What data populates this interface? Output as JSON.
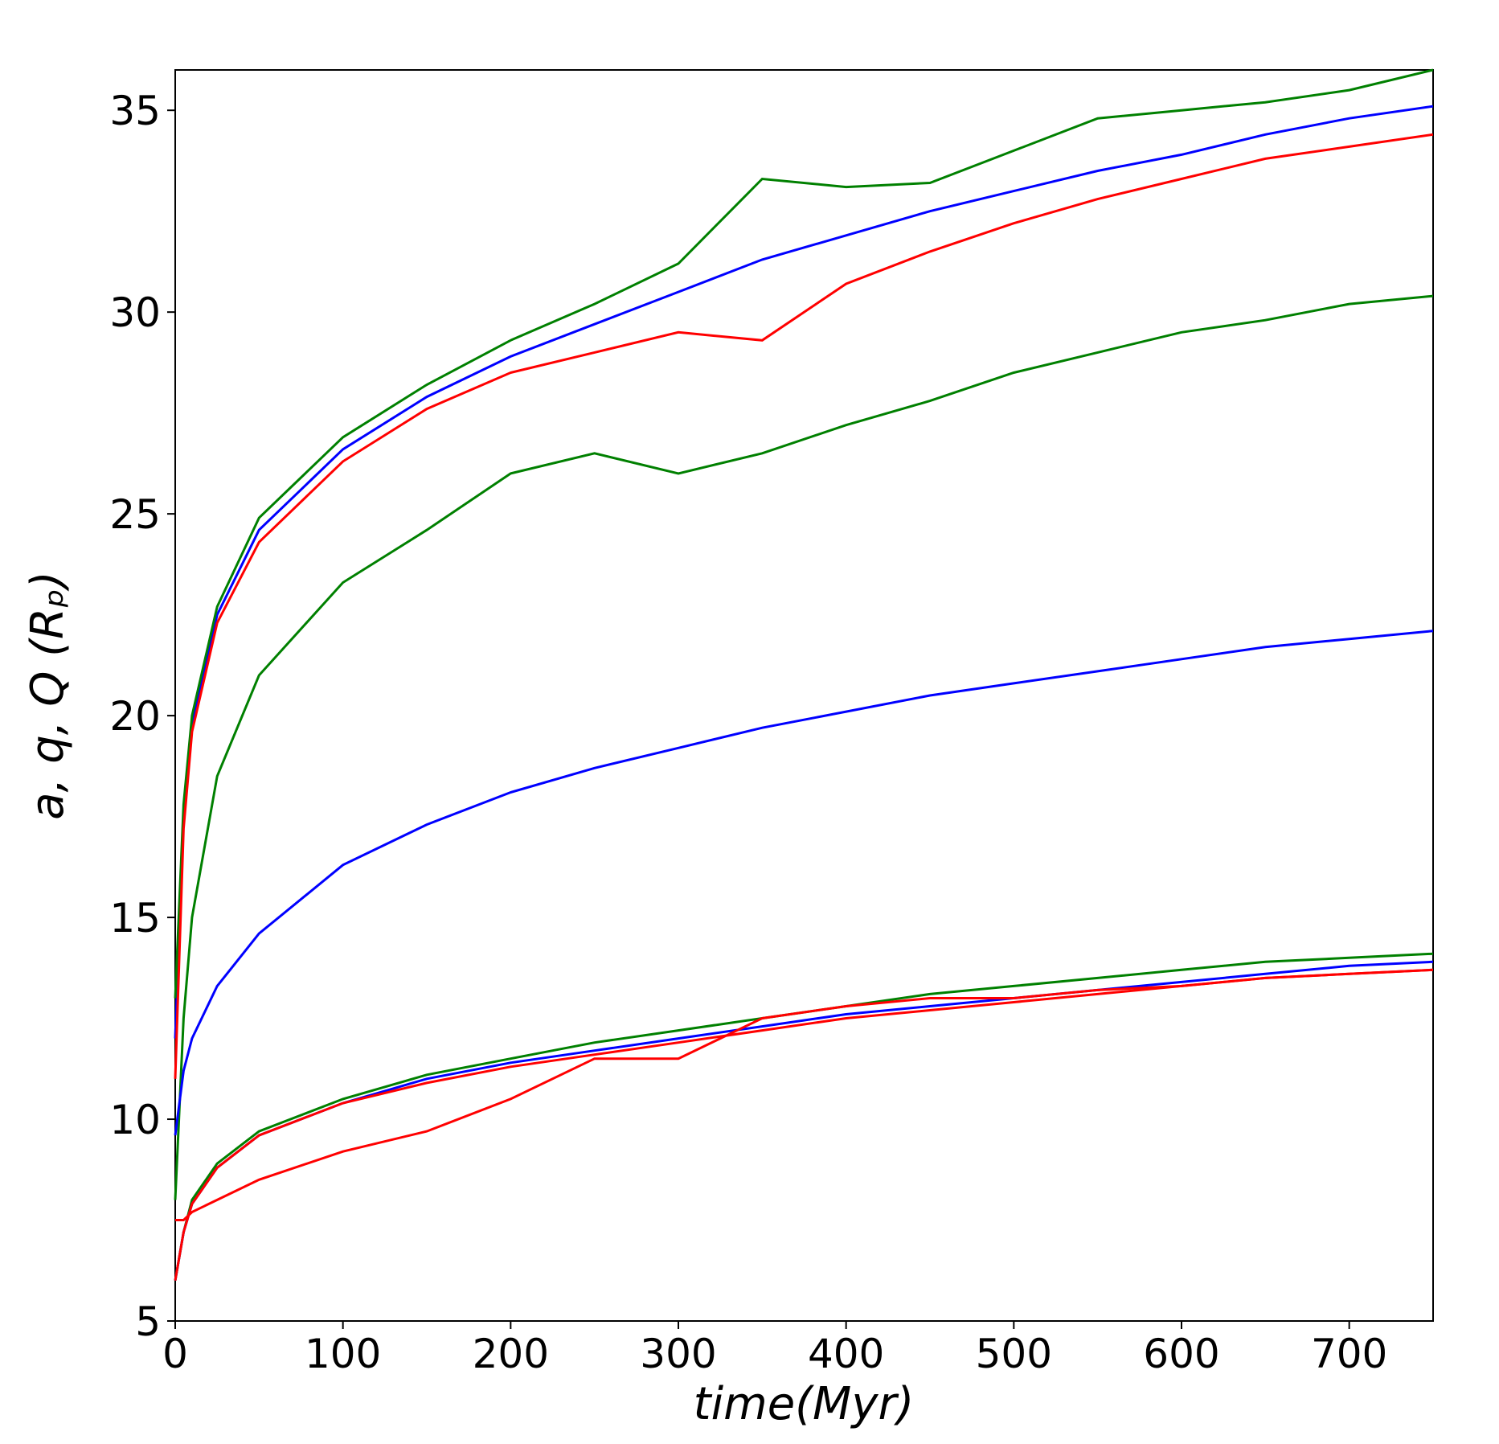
{
  "chart_data": {
    "type": "line",
    "xlabel": "time(Myr)",
    "ylabel": "a, q, Q (Rₚ)",
    "x": [
      0,
      5,
      10,
      25,
      50,
      100,
      150,
      200,
      250,
      300,
      350,
      400,
      450,
      500,
      550,
      600,
      650,
      700,
      750
    ],
    "series": [
      {
        "color": "#0000ff",
        "values": [
          12,
          17.5,
          19.8,
          22.5,
          24.6,
          26.6,
          27.9,
          28.9,
          29.7,
          30.5,
          31.3,
          31.9,
          32.5,
          33.0,
          33.5,
          33.9,
          34.4,
          34.8,
          35.1
        ]
      },
      {
        "color": "#008000",
        "values": [
          13,
          17.8,
          20,
          22.7,
          24.9,
          26.9,
          28.2,
          29.3,
          30.2,
          31.2,
          33.3,
          33.1,
          33.2,
          34,
          34.8,
          35,
          35.2,
          35.5,
          36
        ]
      },
      {
        "color": "#ff0000",
        "values": [
          11,
          17.2,
          19.6,
          22.3,
          24.3,
          26.3,
          27.6,
          28.5,
          29.0,
          29.5,
          29.3,
          30.7,
          31.5,
          32.2,
          32.8,
          33.3,
          33.8,
          34.1,
          34.4
        ]
      },
      {
        "color": "#008000",
        "values": [
          8,
          12.5,
          15,
          18.5,
          21,
          23.3,
          24.6,
          26,
          26.5,
          26,
          26.5,
          27.2,
          27.8,
          28.5,
          29,
          29.5,
          29.8,
          30.2,
          30.4
        ]
      },
      {
        "color": "#0000ff",
        "values": [
          9.6,
          11.2,
          12,
          13.3,
          14.6,
          16.3,
          17.3,
          18.1,
          18.7,
          19.2,
          19.7,
          20.1,
          20.5,
          20.8,
          21.1,
          21.4,
          21.7,
          21.9,
          22.1
        ]
      },
      {
        "color": "#008000",
        "values": [
          6,
          7.2,
          8,
          8.9,
          9.7,
          10.5,
          11.1,
          11.5,
          11.9,
          12.2,
          12.5,
          12.8,
          13.1,
          13.3,
          13.5,
          13.7,
          13.9,
          14.0,
          14.1
        ]
      },
      {
        "color": "#0000ff",
        "values": [
          6,
          7.2,
          7.9,
          8.8,
          9.6,
          10.4,
          11.0,
          11.4,
          11.7,
          12.0,
          12.3,
          12.6,
          12.8,
          13.0,
          13.2,
          13.4,
          13.6,
          13.8,
          13.9
        ]
      },
      {
        "color": "#ff0000",
        "values": [
          6,
          7.2,
          7.9,
          8.8,
          9.6,
          10.4,
          10.9,
          11.3,
          11.6,
          11.9,
          12.2,
          12.5,
          12.7,
          12.9,
          13.1,
          13.3,
          13.5,
          13.6,
          13.7
        ]
      },
      {
        "color": "#ff0000",
        "values": [
          7.5,
          7.5,
          7.7,
          8.0,
          8.5,
          9.2,
          9.7,
          10.5,
          11.5,
          11.5,
          12.5,
          12.8,
          13,
          13,
          13.2,
          13.3,
          13.5,
          13.6,
          13.7
        ]
      }
    ],
    "xlim": [
      0,
      750
    ],
    "xticks": [
      0,
      100,
      200,
      300,
      400,
      500,
      600,
      700
    ],
    "ylim": [
      5,
      36
    ],
    "yticks": [
      5,
      10,
      15,
      20,
      25,
      30,
      35
    ]
  }
}
